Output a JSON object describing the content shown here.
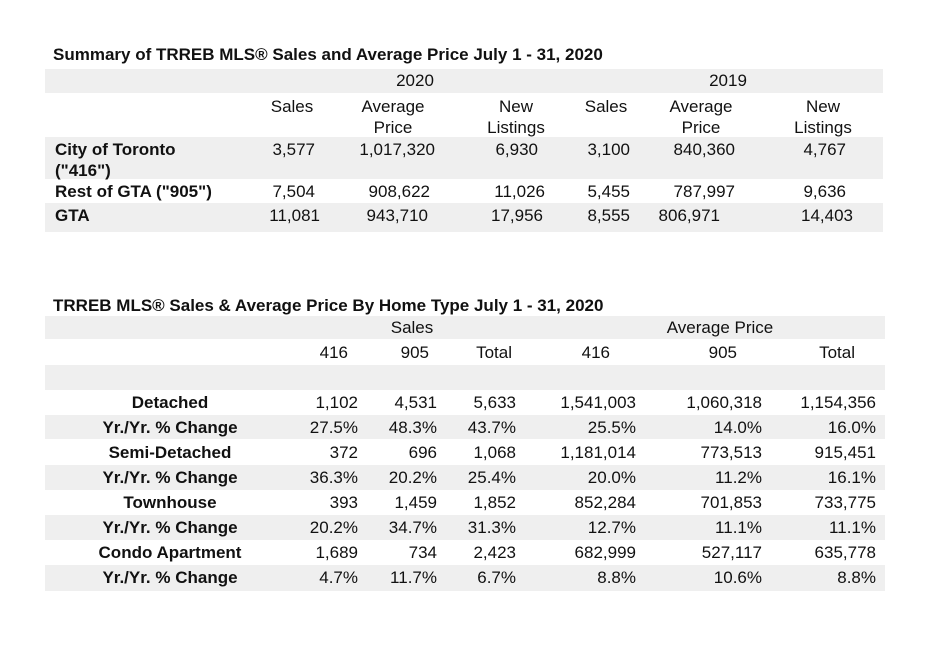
{
  "summary": {
    "title": "Summary of TRREB MLS® Sales and Average Price July 1 - 31, 2020",
    "year_a": "2020",
    "year_b": "2019",
    "columns": [
      "Sales",
      "Average Price",
      "New Listings",
      "Sales",
      "Average Price",
      "New Listings"
    ],
    "rows": [
      {
        "label": "City of Toronto (\"416\")",
        "values": [
          "3,577",
          "1,017,320",
          "6,930",
          "3,100",
          "840,360",
          "4,767"
        ]
      },
      {
        "label": "Rest of GTA (\"905\")",
        "values": [
          "7,504",
          "908,622",
          "11,026",
          "5,455",
          "787,997",
          "9,636"
        ]
      },
      {
        "label": "GTA",
        "values": [
          "11,081",
          "943,710",
          "17,956",
          "8,555",
          "806,971",
          "14,403"
        ]
      }
    ]
  },
  "by_type": {
    "title": "TRREB MLS® Sales & Average Price  By Home Type July 1 - 31, 2020",
    "group_sales": "Sales",
    "group_price": "Average Price",
    "columns": [
      "416",
      "905",
      "Total",
      "416",
      "905",
      "Total"
    ],
    "rows": [
      {
        "label": "Detached",
        "values": [
          "1,102",
          "4,531",
          "5,633",
          "1,541,003",
          "1,060,318",
          "1,154,356"
        ]
      },
      {
        "label": "Yr./Yr. % Change",
        "values": [
          "27.5%",
          "48.3%",
          "43.7%",
          "25.5%",
          "14.0%",
          "16.0%"
        ]
      },
      {
        "label": "Semi-Detached",
        "values": [
          "372",
          "696",
          "1,068",
          "1,181,014",
          "773,513",
          "915,451"
        ]
      },
      {
        "label": "Yr./Yr. % Change",
        "values": [
          "36.3%",
          "20.2%",
          "25.4%",
          "20.0%",
          "11.2%",
          "16.1%"
        ]
      },
      {
        "label": "Townhouse",
        "values": [
          "393",
          "1,459",
          "1,852",
          "852,284",
          "701,853",
          "733,775"
        ]
      },
      {
        "label": "Yr./Yr. % Change",
        "values": [
          "20.2%",
          "34.7%",
          "31.3%",
          "12.7%",
          "11.1%",
          "11.1%"
        ]
      },
      {
        "label": "Condo Apartment",
        "values": [
          "1,689",
          "734",
          "2,423",
          "682,999",
          "527,117",
          "635,778"
        ]
      },
      {
        "label": "Yr./Yr. % Change",
        "values": [
          "4.7%",
          "11.7%",
          "6.7%",
          "8.8%",
          "10.6%",
          "8.8%"
        ]
      }
    ]
  }
}
